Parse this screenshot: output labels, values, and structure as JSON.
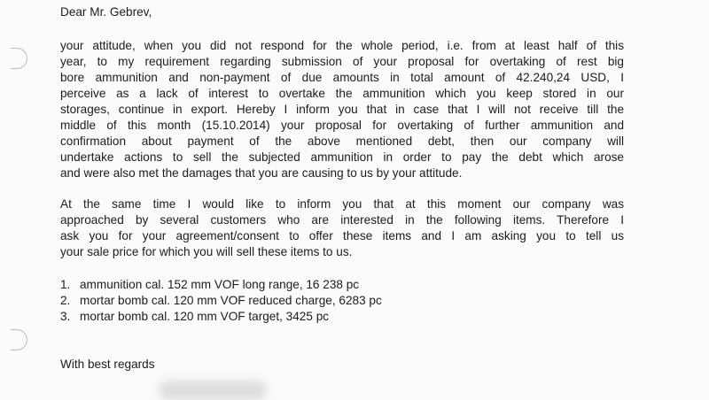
{
  "letter": {
    "greeting": "Dear Mr. Gebrev,",
    "paragraph1": [
      "your attitude, when you did not respond for the whole period, i.e. from at least half of this",
      "year, to my requirement regarding submission of your proposal for overtaking of rest big",
      "bore ammunition and non-payment of due amounts in total amount of 42.240,24 USD, I",
      "perceive as a lack of interest to overtake the ammunition which you keep stored in our",
      "storages, continue in export. Hereby I inform you that in case that I will not receive till the",
      "middle of this month (15.10.2014) your proposal for overtaking of further ammunition and",
      "confirmation about payment of the above mentioned debt, then our company will",
      "undertake actions to sell the subjected ammunition in order to pay the debt which arose",
      "and were also met the damages that you are causing to us by your attitude."
    ],
    "paragraph2": [
      "At the same time I would like to inform you that at this moment our company was",
      "approached by several customers who are interested in the following items. Therefore I",
      "ask you for your agreement/consent to offer these items and I am asking you to tell us",
      "your sale price for which you will sell these items to us."
    ],
    "items": [
      {
        "num": "1.",
        "text": "ammunition cal. 152 mm VOF long range, 16 238 pc"
      },
      {
        "num": "2.",
        "text": "mortar bomb cal. 120 mm VOF reduced charge, 6283 pc"
      },
      {
        "num": "3.",
        "text": "mortar bomb cal. 120 mm VOF target, 3425 pc"
      }
    ],
    "closing": "With best regards"
  }
}
